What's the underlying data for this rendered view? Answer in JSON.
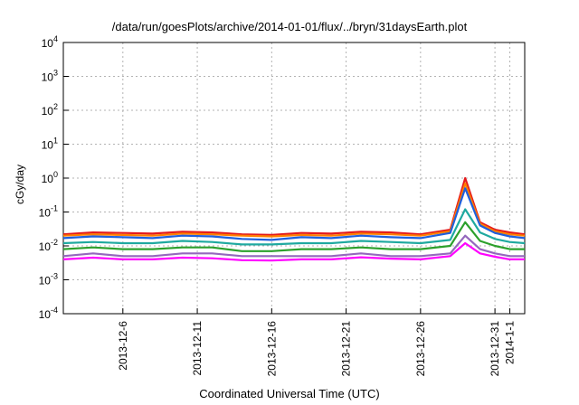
{
  "chart_data": {
    "type": "line",
    "title": "/data/run/goesPlots/archive/2014-01-01/flux/../bryn/31daysEarth.plot",
    "xlabel": "Coordinated Universal Time (UTC)",
    "ylabel": "cGy/day",
    "yscale": "log",
    "ylim": [
      0.0001,
      10000
    ],
    "xlim": [
      "2013-12-02",
      "2014-01-02"
    ],
    "grid": true,
    "x_ticks": [
      "2013-12-6",
      "2013-12-11",
      "2013-12-16",
      "2013-12-21",
      "2013-12-26",
      "2013-12-31",
      "2014-1-1"
    ],
    "y_ticks": [
      {
        "base": "10",
        "exp": "-4"
      },
      {
        "base": "10",
        "exp": "-3"
      },
      {
        "base": "10",
        "exp": "-2"
      },
      {
        "base": "10",
        "exp": "-1"
      },
      {
        "base": "10",
        "exp": "0"
      },
      {
        "base": "10",
        "exp": "1"
      },
      {
        "base": "10",
        "exp": "2"
      },
      {
        "base": "10",
        "exp": "3"
      },
      {
        "base": "10",
        "exp": "4"
      }
    ],
    "x": [
      "2013-12-02",
      "2013-12-04",
      "2013-12-06",
      "2013-12-08",
      "2013-12-10",
      "2013-12-12",
      "2013-12-14",
      "2013-12-16",
      "2013-12-18",
      "2013-12-20",
      "2013-12-22",
      "2013-12-24",
      "2013-12-26",
      "2013-12-28",
      "2013-12-29",
      "2013-12-30",
      "2013-12-31",
      "2014-01-01",
      "2014-01-02"
    ],
    "series": [
      {
        "color": "#e41a1c",
        "values": [
          0.022,
          0.025,
          0.024,
          0.023,
          0.026,
          0.025,
          0.022,
          0.021,
          0.024,
          0.023,
          0.026,
          0.025,
          0.022,
          0.03,
          1.0,
          0.05,
          0.03,
          0.025,
          0.022
        ]
      },
      {
        "color": "#ff7f00",
        "values": [
          0.02,
          0.022,
          0.021,
          0.02,
          0.023,
          0.022,
          0.02,
          0.019,
          0.021,
          0.02,
          0.023,
          0.022,
          0.02,
          0.027,
          0.7,
          0.045,
          0.027,
          0.022,
          0.02
        ]
      },
      {
        "color": "#1f5fdd",
        "values": [
          0.017,
          0.019,
          0.018,
          0.017,
          0.02,
          0.019,
          0.016,
          0.015,
          0.018,
          0.017,
          0.02,
          0.018,
          0.017,
          0.024,
          0.5,
          0.04,
          0.024,
          0.019,
          0.017
        ]
      },
      {
        "color": "#1fa9a0",
        "values": [
          0.012,
          0.013,
          0.012,
          0.012,
          0.014,
          0.013,
          0.011,
          0.011,
          0.012,
          0.012,
          0.014,
          0.013,
          0.012,
          0.015,
          0.12,
          0.025,
          0.016,
          0.013,
          0.012
        ]
      },
      {
        "color": "#2ca02c",
        "values": [
          0.008,
          0.009,
          0.008,
          0.008,
          0.009,
          0.009,
          0.007,
          0.007,
          0.008,
          0.008,
          0.009,
          0.008,
          0.008,
          0.01,
          0.05,
          0.014,
          0.01,
          0.008,
          0.008
        ]
      },
      {
        "color": "#9467bd",
        "values": [
          0.005,
          0.006,
          0.005,
          0.005,
          0.006,
          0.006,
          0.005,
          0.005,
          0.005,
          0.005,
          0.006,
          0.005,
          0.005,
          0.006,
          0.02,
          0.008,
          0.006,
          0.005,
          0.005
        ]
      },
      {
        "color": "#ff00ff",
        "values": [
          0.004,
          0.0045,
          0.004,
          0.004,
          0.0045,
          0.0043,
          0.0038,
          0.0037,
          0.004,
          0.004,
          0.0046,
          0.0042,
          0.004,
          0.005,
          0.012,
          0.006,
          0.0048,
          0.004,
          0.004
        ]
      }
    ]
  }
}
